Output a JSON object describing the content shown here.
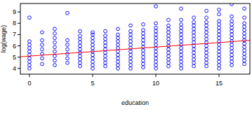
{
  "chart_data": {
    "type": "scatter",
    "x_label": "education",
    "y_label": "log(wage)",
    "xlim": [
      -0.72,
      17.44
    ],
    "ylim": [
      3.5,
      9.75
    ],
    "xticks": [
      0,
      5,
      10,
      15
    ],
    "yticks": [
      4,
      5,
      6,
      7,
      8,
      9
    ],
    "grid": false,
    "series": [
      {
        "type": "scatter",
        "color": "#0000ff",
        "marker": "circle",
        "x": [
          0,
          0,
          0,
          0,
          0,
          0,
          0,
          0,
          0,
          0,
          1,
          1,
          1,
          1,
          1,
          1,
          1,
          2,
          2,
          2,
          2,
          2,
          2,
          2,
          2,
          2,
          3,
          3,
          3,
          3,
          3,
          3,
          3,
          4,
          4,
          4,
          4,
          4,
          4,
          4,
          4,
          4,
          4,
          4,
          5,
          5,
          5,
          5,
          5,
          5,
          5,
          5,
          5,
          5,
          5,
          5,
          6,
          6,
          6,
          6,
          6,
          6,
          6,
          6,
          6,
          6,
          6,
          7,
          7,
          7,
          7,
          7,
          7,
          7,
          7,
          7,
          7,
          7,
          7,
          8,
          8,
          8,
          8,
          8,
          8,
          8,
          8,
          8,
          8,
          8,
          8,
          8,
          9,
          9,
          9,
          9,
          9,
          9,
          9,
          9,
          9,
          9,
          9,
          9,
          9,
          10,
          10,
          10,
          10,
          10,
          10,
          10,
          10,
          10,
          10,
          10,
          10,
          10,
          10,
          10,
          11,
          11,
          11,
          11,
          11,
          11,
          11,
          11,
          11,
          11,
          11,
          11,
          11,
          11,
          12,
          12,
          12,
          12,
          12,
          12,
          12,
          12,
          12,
          12,
          12,
          12,
          12,
          12,
          12,
          12,
          13,
          13,
          13,
          13,
          13,
          13,
          13,
          13,
          13,
          13,
          13,
          13,
          13,
          13,
          13,
          14,
          14,
          14,
          14,
          14,
          14,
          14,
          14,
          14,
          14,
          14,
          14,
          14,
          14,
          14,
          14,
          15,
          15,
          15,
          15,
          15,
          15,
          15,
          15,
          15,
          15,
          15,
          15,
          15,
          15,
          15,
          15,
          15,
          16,
          16,
          16,
          16,
          16,
          16,
          16,
          16,
          16,
          16,
          16,
          16,
          16,
          16,
          16,
          16,
          17,
          17,
          17,
          17,
          17,
          17,
          17,
          17,
          17,
          17,
          17,
          17,
          17,
          17,
          17
        ],
        "values": [
          4.0,
          4.3,
          4.6,
          4.9,
          5.2,
          5.5,
          5.8,
          6.1,
          6.4,
          8.5,
          4.4,
          4.9,
          5.3,
          5.7,
          6.1,
          6.5,
          7.2,
          4.3,
          4.7,
          5.1,
          5.5,
          5.9,
          6.3,
          6.7,
          7.1,
          7.5,
          4.5,
          4.9,
          5.3,
          5.7,
          6.1,
          6.5,
          8.9,
          4.2,
          4.5,
          4.8,
          5.1,
          5.4,
          5.7,
          6.0,
          6.3,
          6.6,
          6.9,
          7.3,
          4.0,
          4.3,
          4.6,
          4.9,
          5.2,
          5.5,
          5.8,
          6.1,
          6.4,
          6.7,
          7.0,
          7.2,
          4.2,
          4.5,
          4.8,
          5.1,
          5.4,
          5.7,
          6.0,
          6.3,
          6.6,
          6.9,
          7.3,
          4.0,
          4.3,
          4.6,
          4.9,
          5.2,
          5.5,
          5.8,
          6.1,
          6.4,
          6.7,
          7.0,
          7.5,
          4.0,
          4.3,
          4.6,
          4.9,
          5.2,
          5.5,
          5.8,
          6.1,
          6.4,
          6.7,
          7.0,
          7.3,
          7.8,
          4.1,
          4.4,
          4.7,
          5.0,
          5.3,
          5.6,
          5.9,
          6.2,
          6.5,
          6.8,
          7.1,
          7.4,
          7.9,
          4.0,
          4.3,
          4.6,
          4.9,
          5.2,
          5.5,
          5.8,
          6.1,
          6.4,
          6.7,
          7.0,
          7.3,
          7.6,
          8.0,
          9.5,
          4.2,
          4.5,
          4.8,
          5.1,
          5.4,
          5.7,
          6.0,
          6.3,
          6.6,
          6.9,
          7.2,
          7.5,
          7.8,
          8.3,
          4.0,
          4.3,
          4.6,
          4.9,
          5.2,
          5.5,
          5.8,
          6.1,
          6.4,
          6.7,
          7.0,
          7.3,
          7.6,
          7.9,
          8.3,
          9.3,
          4.2,
          4.5,
          4.8,
          5.1,
          5.4,
          5.7,
          6.0,
          6.3,
          6.6,
          6.9,
          7.2,
          7.5,
          7.8,
          8.1,
          8.5,
          4.2,
          4.5,
          4.8,
          5.1,
          5.4,
          5.7,
          6.0,
          6.3,
          6.6,
          6.9,
          7.2,
          7.5,
          7.8,
          8.1,
          8.5,
          9.1,
          4.0,
          4.3,
          4.6,
          4.9,
          5.2,
          5.5,
          5.8,
          6.1,
          6.4,
          6.7,
          7.0,
          7.3,
          7.6,
          7.9,
          8.2,
          8.8,
          9.2,
          4.3,
          4.6,
          4.9,
          5.2,
          5.5,
          5.8,
          6.1,
          6.4,
          6.7,
          7.0,
          7.3,
          7.6,
          7.9,
          8.2,
          8.6,
          9.7,
          4.4,
          4.7,
          5.0,
          5.3,
          5.6,
          5.9,
          6.2,
          6.5,
          6.8,
          7.1,
          7.4,
          7.7,
          8.0,
          8.5,
          9.3
        ]
      },
      {
        "type": "line",
        "color": "#ff0000",
        "line_style": "solid",
        "x": [
          -0.72,
          17.44
        ],
        "values": [
          5.04,
          6.49
        ]
      }
    ]
  }
}
